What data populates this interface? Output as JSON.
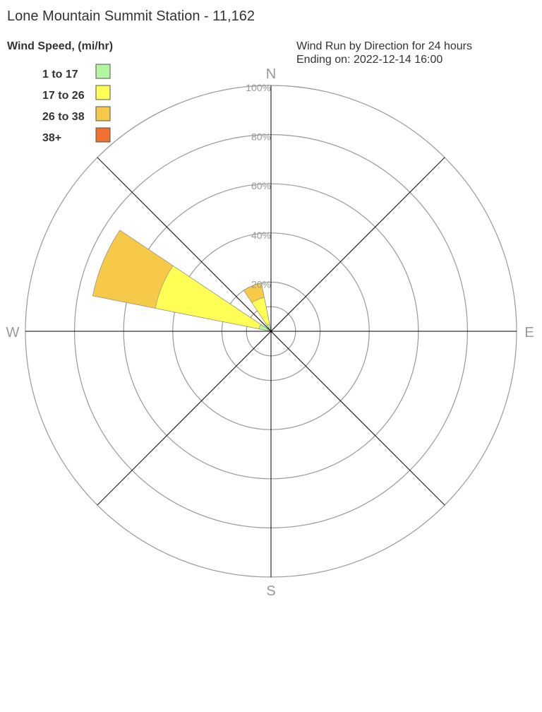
{
  "header": {
    "title": "Lone Mountain Summit Station - 11,162",
    "subtitle_line1": "Wind Run by Direction for 24 hours",
    "subtitle_line2": "Ending on: 2022-12-14 16:00"
  },
  "legend": {
    "heading": "Wind Speed, (mi/hr)",
    "placement": "top-left"
  },
  "chart_data": {
    "type": "wind-rose",
    "radial_axis": {
      "range": [
        0,
        100
      ],
      "ticks": [
        20,
        40,
        60,
        80,
        100
      ],
      "tick_labels": [
        "20%",
        "40%",
        "60%",
        "80%",
        "100%"
      ]
    },
    "directions": [
      "N",
      "E",
      "S",
      "W"
    ],
    "direction_angles": [
      0,
      90,
      180,
      270
    ],
    "sector_width_deg": 22.5,
    "bins": [
      {
        "label": "1 to 17",
        "color": "#b3f5a0"
      },
      {
        "label": "17 to 26",
        "color": "#ffff55"
      },
      {
        "label": "26 to 38",
        "color": "#f7c948"
      },
      {
        "label": "38+",
        "color": "#f07030"
      }
    ],
    "sectors": [
      {
        "direction": "NNW",
        "angle": 337.5,
        "cumulative": [
          3,
          14,
          20,
          20
        ]
      },
      {
        "direction": "NW",
        "angle": 315,
        "cumulative": [
          0,
          0,
          0,
          0
        ]
      },
      {
        "direction": "WNW",
        "angle": 292.5,
        "cumulative": [
          5,
          48,
          74,
          74
        ]
      },
      {
        "direction": "NNE",
        "angle": 22.5,
        "cumulative": [
          0,
          0,
          0,
          0
        ]
      }
    ],
    "grid": true
  }
}
